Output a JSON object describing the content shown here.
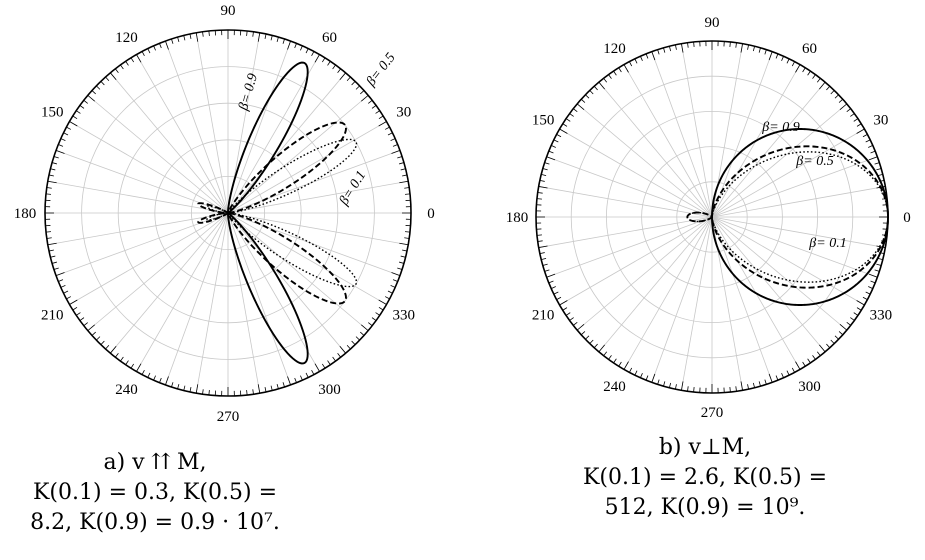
{
  "chart_data": [
    {
      "type": "polar",
      "angle_ticks": [
        "0",
        "30",
        "60",
        "90",
        "120",
        "150",
        "180",
        "210",
        "240",
        "270",
        "300",
        "330"
      ],
      "series": [
        {
          "name": "β= 0.9",
          "line": "solid"
        },
        {
          "name": "β= 0.5",
          "line": "dashed"
        },
        {
          "name": "β= 0.1",
          "line": "dotted"
        }
      ],
      "lobes": {
        "0.9": {
          "peak_deg": 63,
          "radius": 0.92,
          "width": 0.22,
          "back_radius": 0.0
        },
        "0.5": {
          "peak_deg": 37,
          "radius": 0.8,
          "width": 0.26,
          "back_radius": 0.17
        },
        "0.1": {
          "peak_deg": 29,
          "radius": 0.8,
          "width": 0.22,
          "back_radius": 0.12
        }
      },
      "grid": true,
      "caption": [
        "a) v ⇈ M,",
        "K(0.1) = 0.3, K(0.5) =",
        "8.2, K(0.9) = 0.9 · 10⁷."
      ]
    },
    {
      "type": "polar",
      "angle_ticks": [
        "0",
        "30",
        "60",
        "90",
        "120",
        "150",
        "180",
        "210",
        "240",
        "270",
        "300",
        "330"
      ],
      "series": [
        {
          "name": "β= 0.9",
          "line": "solid"
        },
        {
          "name": "β= 0.5",
          "line": "dashed"
        },
        {
          "name": "β= 0.1",
          "line": "dotted"
        }
      ],
      "lobes": {
        "0.9": {
          "radius": 1.0,
          "back_radius": 0.0
        },
        "0.5": {
          "radius": 1.0,
          "back_radius": 0.14
        },
        "0.1": {
          "radius": 1.0,
          "back_radius": 0.14
        }
      },
      "grid": true,
      "caption": [
        "b) v⊥M,",
        "K(0.1) = 2.6, K(0.5) =",
        "512, K(0.9) = 10⁹."
      ]
    }
  ]
}
